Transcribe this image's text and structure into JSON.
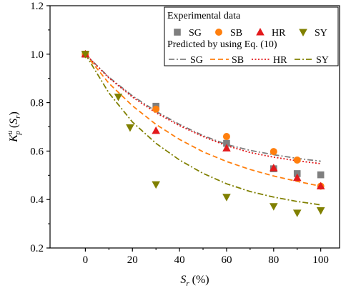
{
  "chart_data": {
    "type": "scatter",
    "xlim": [
      -15,
      108
    ],
    "ylim": [
      0.2,
      1.2
    ],
    "xticks": [
      0,
      20,
      40,
      60,
      80,
      100
    ],
    "yticks": [
      0.2,
      0.4,
      0.6,
      0.8,
      1.0,
      1.2
    ],
    "xtick_labels": [
      "0",
      "20",
      "40",
      "60",
      "80",
      "100"
    ],
    "ytick_labels": [
      "0.2",
      "0.4",
      "0.6",
      "0.8",
      "1.0",
      "1.2"
    ],
    "xlabel": {
      "base": "S",
      "sub": "r",
      "rest": " (%)"
    },
    "ylabel": {
      "base": "K",
      "sup": "u",
      "sub": "p",
      "paren_base": "S",
      "paren_sub": "r"
    },
    "grid": false,
    "legend_position": "top-right",
    "legend": {
      "experimental_title": "Experimental data",
      "predicted_title": "Predicted by using Eq. (10)"
    },
    "experimental": [
      {
        "name": "SG",
        "marker": "square",
        "color": "#7f7f7f",
        "x": [
          0,
          30,
          60,
          80,
          90,
          100
        ],
        "y": [
          1.0,
          0.785,
          0.632,
          0.527,
          0.507,
          0.502
        ]
      },
      {
        "name": "SB",
        "marker": "circle",
        "color": "#ff7f0e",
        "x": [
          0,
          30,
          60,
          80,
          90,
          100
        ],
        "y": [
          1.0,
          0.773,
          0.66,
          0.598,
          0.563,
          0.455
        ]
      },
      {
        "name": "HR",
        "marker": "triangle-up",
        "color": "#e31a1c",
        "x": [
          0,
          30,
          60,
          80,
          90,
          100
        ],
        "y": [
          1.0,
          0.684,
          0.612,
          0.53,
          0.49,
          0.455
        ]
      },
      {
        "name": "SY",
        "marker": "triangle-down",
        "color": "#808000",
        "x": [
          0,
          14,
          19,
          30,
          60,
          80,
          90,
          100
        ],
        "y": [
          1.0,
          0.824,
          0.697,
          0.462,
          0.41,
          0.372,
          0.345,
          0.355
        ]
      }
    ],
    "predicted": [
      {
        "name": "SG",
        "style": "dash-dot",
        "color": "#7f7f7f",
        "x": [
          0,
          10,
          20,
          30,
          40,
          50,
          60,
          70,
          80,
          90,
          100
        ],
        "y": [
          1.0,
          0.905,
          0.828,
          0.764,
          0.71,
          0.664,
          0.627,
          0.603,
          0.585,
          0.57,
          0.558
        ]
      },
      {
        "name": "SB",
        "style": "dash",
        "color": "#ff7f0e",
        "x": [
          0,
          10,
          20,
          30,
          40,
          50,
          60,
          70,
          80,
          90,
          100
        ],
        "y": [
          1.0,
          0.88,
          0.787,
          0.71,
          0.648,
          0.597,
          0.557,
          0.524,
          0.497,
          0.475,
          0.455
        ]
      },
      {
        "name": "HR",
        "style": "dot",
        "color": "#e31a1c",
        "x": [
          0,
          10,
          20,
          30,
          40,
          50,
          60,
          70,
          80,
          90,
          100
        ],
        "y": [
          1.0,
          0.902,
          0.823,
          0.758,
          0.705,
          0.66,
          0.622,
          0.594,
          0.575,
          0.56,
          0.548
        ]
      },
      {
        "name": "SY",
        "style": "dash-dot",
        "color": "#808000",
        "x": [
          0,
          10,
          20,
          30,
          40,
          50,
          60,
          70,
          80,
          90,
          100
        ],
        "y": [
          1.0,
          0.84,
          0.72,
          0.632,
          0.563,
          0.508,
          0.465,
          0.433,
          0.41,
          0.392,
          0.378
        ]
      }
    ]
  }
}
